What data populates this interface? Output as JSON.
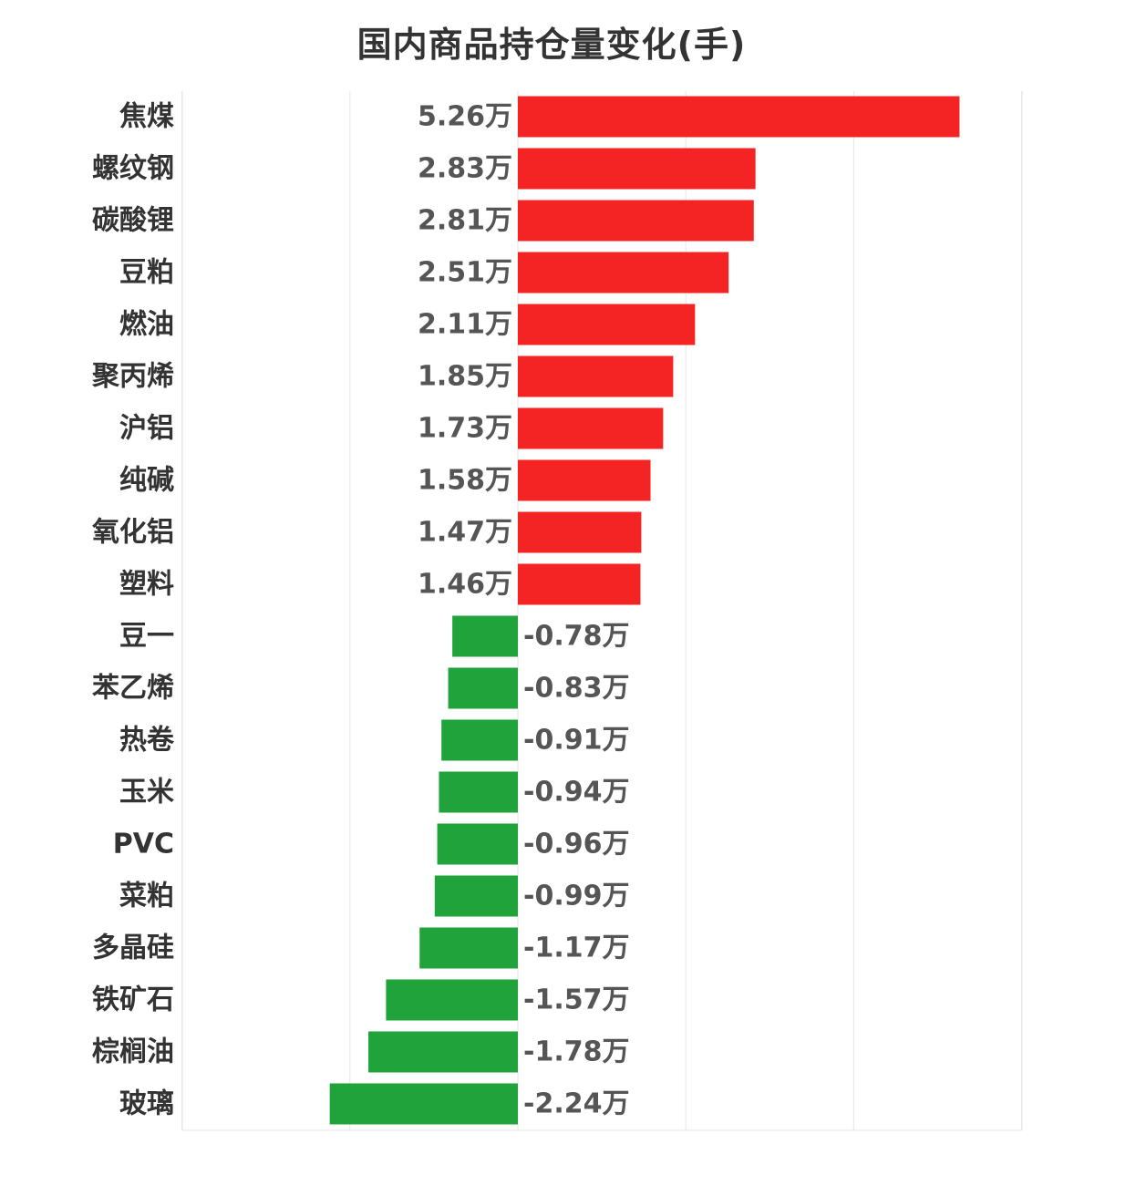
{
  "chart_data": {
    "type": "bar",
    "orientation": "horizontal",
    "title": "国内商品持仓量变化(手)",
    "xlabel": "",
    "ylabel": "",
    "unit_suffix": "万",
    "xlim": [
      -2,
      3
    ],
    "grid": true,
    "categories": [
      "焦煤",
      "螺纹钢",
      "碳酸锂",
      "豆粕",
      "燃油",
      "聚丙烯",
      "沪铝",
      "纯碱",
      "氧化铝",
      "塑料",
      "豆一",
      "苯乙烯",
      "热卷",
      "玉米",
      "PVC",
      "菜粕",
      "多晶硅",
      "铁矿石",
      "棕榈油",
      "玻璃"
    ],
    "values": [
      5.26,
      2.83,
      2.81,
      2.51,
      2.11,
      1.85,
      1.73,
      1.58,
      1.47,
      1.46,
      -0.78,
      -0.83,
      -0.91,
      -0.94,
      -0.96,
      -0.99,
      -1.17,
      -1.57,
      -1.78,
      -2.24
    ],
    "value_labels": [
      "5.26万",
      "2.83万",
      "2.81万",
      "2.51万",
      "2.11万",
      "1.85万",
      "1.73万",
      "1.58万",
      "1.47万",
      "1.46万",
      "-0.78万",
      "-0.83万",
      "-0.91万",
      "-0.94万",
      "-0.96万",
      "-0.99万",
      "-1.17万",
      "-1.57万",
      "-1.78万",
      "-2.24万"
    ],
    "colors": {
      "positive": "#f42424",
      "negative": "#21a33b",
      "grid": "#e6e6e6"
    }
  }
}
